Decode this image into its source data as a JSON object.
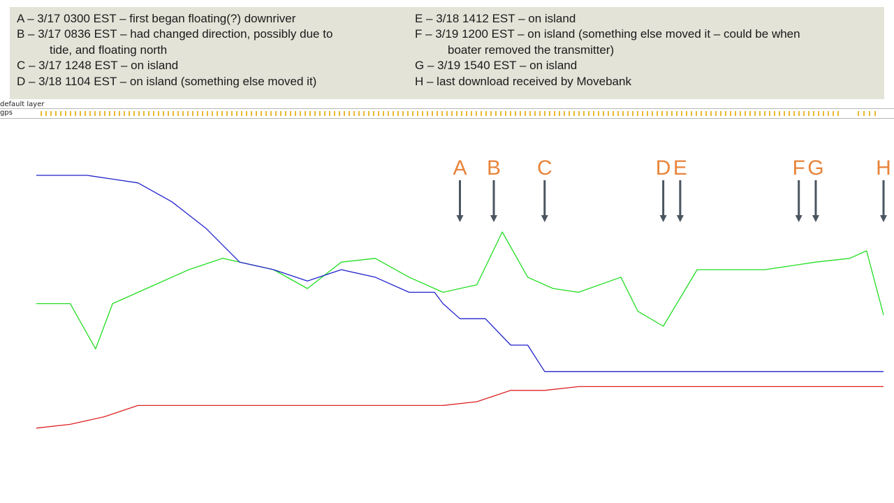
{
  "legend": {
    "left": [
      {
        "key": "A",
        "line1": "A – 3/17 0300 EST – first began floating(?) downriver",
        "line2": ""
      },
      {
        "key": "B",
        "line1": "B – 3/17 0836 EST – had changed direction, possibly due to",
        "line2": "tide, and floating north"
      },
      {
        "key": "C",
        "line1": "C – 3/17 1248 EST – on island",
        "line2": ""
      },
      {
        "key": "D",
        "line1": "D – 3/18 1104 EST – on island (something else moved it)",
        "line2": ""
      }
    ],
    "right": [
      {
        "key": "E",
        "line1": "E – 3/18 1412 EST – on island",
        "line2": ""
      },
      {
        "key": "F",
        "line1": "F – 3/19 1200 EST – on island (something else moved it – could be when",
        "line2": "boater removed the transmitter)"
      },
      {
        "key": "G",
        "line1": "G – 3/19 1540 EST – on island",
        "line2": ""
      },
      {
        "key": "H",
        "line1": "H – last download received by Movebank",
        "line2": ""
      }
    ]
  },
  "track_header": {
    "layer_label": "default layer",
    "gps_label": "gps",
    "tick_color": "#e8b830"
  },
  "chart_data": {
    "type": "line",
    "title": "",
    "xlabel": "",
    "ylabel": "",
    "xlim": [
      0,
      100
    ],
    "ylim": [
      0,
      100
    ],
    "grid": false,
    "legend": "none",
    "series": [
      {
        "color": "#22dd22",
        "segments": [
          [
            [
              0,
              51
            ],
            [
              4,
              51
            ],
            [
              7,
              39
            ],
            [
              9,
              51
            ],
            [
              14,
              56
            ],
            [
              18,
              60
            ],
            [
              22,
              63
            ],
            [
              28,
              60
            ],
            [
              32,
              55
            ],
            [
              36,
              62
            ],
            [
              40,
              63
            ],
            [
              44,
              58
            ],
            [
              48,
              54
            ],
            [
              52,
              56
            ],
            [
              55,
              70
            ],
            [
              58,
              58
            ],
            [
              61,
              55
            ],
            [
              64,
              54
            ],
            [
              69,
              58
            ],
            [
              71,
              49
            ],
            [
              74,
              45
            ],
            [
              78,
              60
            ],
            [
              86,
              60
            ],
            [
              92,
              62
            ],
            [
              96,
              63
            ],
            [
              98,
              65
            ],
            [
              100,
              48
            ]
          ]
        ]
      },
      {
        "color": "#2222cc",
        "segments": [
          [
            [
              0,
              85
            ],
            [
              2,
              85
            ],
            [
              4,
              85
            ],
            [
              6,
              85
            ],
            [
              9,
              84
            ],
            [
              12,
              83
            ],
            [
              16,
              78
            ],
            [
              20,
              71
            ],
            [
              24,
              62
            ],
            [
              28,
              60
            ],
            [
              32,
              57
            ],
            [
              36,
              60
            ],
            [
              40,
              58
            ],
            [
              44,
              54
            ],
            [
              47,
              54
            ],
            [
              48,
              51
            ],
            [
              50,
              47
            ],
            [
              53,
              47
            ],
            [
              56,
              40
            ],
            [
              58,
              40
            ],
            [
              60,
              33
            ],
            [
              64,
              33
            ],
            [
              66,
              33
            ],
            [
              68,
              33
            ],
            [
              70,
              33
            ],
            [
              72,
              33
            ],
            [
              75,
              33
            ],
            [
              78,
              33
            ],
            [
              80,
              33
            ],
            [
              82,
              33
            ],
            [
              84,
              33
            ],
            [
              86,
              33
            ],
            [
              88,
              33
            ],
            [
              90,
              33
            ],
            [
              92,
              33
            ],
            [
              94,
              33
            ],
            [
              96,
              33
            ],
            [
              98,
              33
            ],
            [
              100,
              33
            ]
          ]
        ]
      },
      {
        "color": "#dd2222",
        "segments": [
          [
            [
              0,
              18
            ],
            [
              4,
              19
            ],
            [
              8,
              21
            ],
            [
              12,
              24
            ],
            [
              16,
              24
            ],
            [
              20,
              24
            ],
            [
              24,
              24
            ],
            [
              28,
              24
            ],
            [
              32,
              24
            ],
            [
              36,
              24
            ],
            [
              40,
              24
            ],
            [
              44,
              24
            ],
            [
              48,
              24
            ],
            [
              52,
              25
            ],
            [
              56,
              28
            ],
            [
              60,
              28
            ],
            [
              64,
              29
            ],
            [
              68,
              29
            ],
            [
              72,
              29
            ],
            [
              76,
              29
            ],
            [
              80,
              29
            ],
            [
              84,
              29
            ],
            [
              88,
              29
            ],
            [
              92,
              29
            ],
            [
              96,
              29
            ],
            [
              100,
              29
            ]
          ]
        ]
      }
    ],
    "markers": [
      {
        "label": "A",
        "x": 50
      },
      {
        "label": "B",
        "x": 54
      },
      {
        "label": "C",
        "x": 60
      },
      {
        "label": "D",
        "x": 74
      },
      {
        "label": "E",
        "x": 76
      },
      {
        "label": "F",
        "x": 90
      },
      {
        "label": "G",
        "x": 92
      },
      {
        "label": "H",
        "x": 100
      }
    ]
  }
}
